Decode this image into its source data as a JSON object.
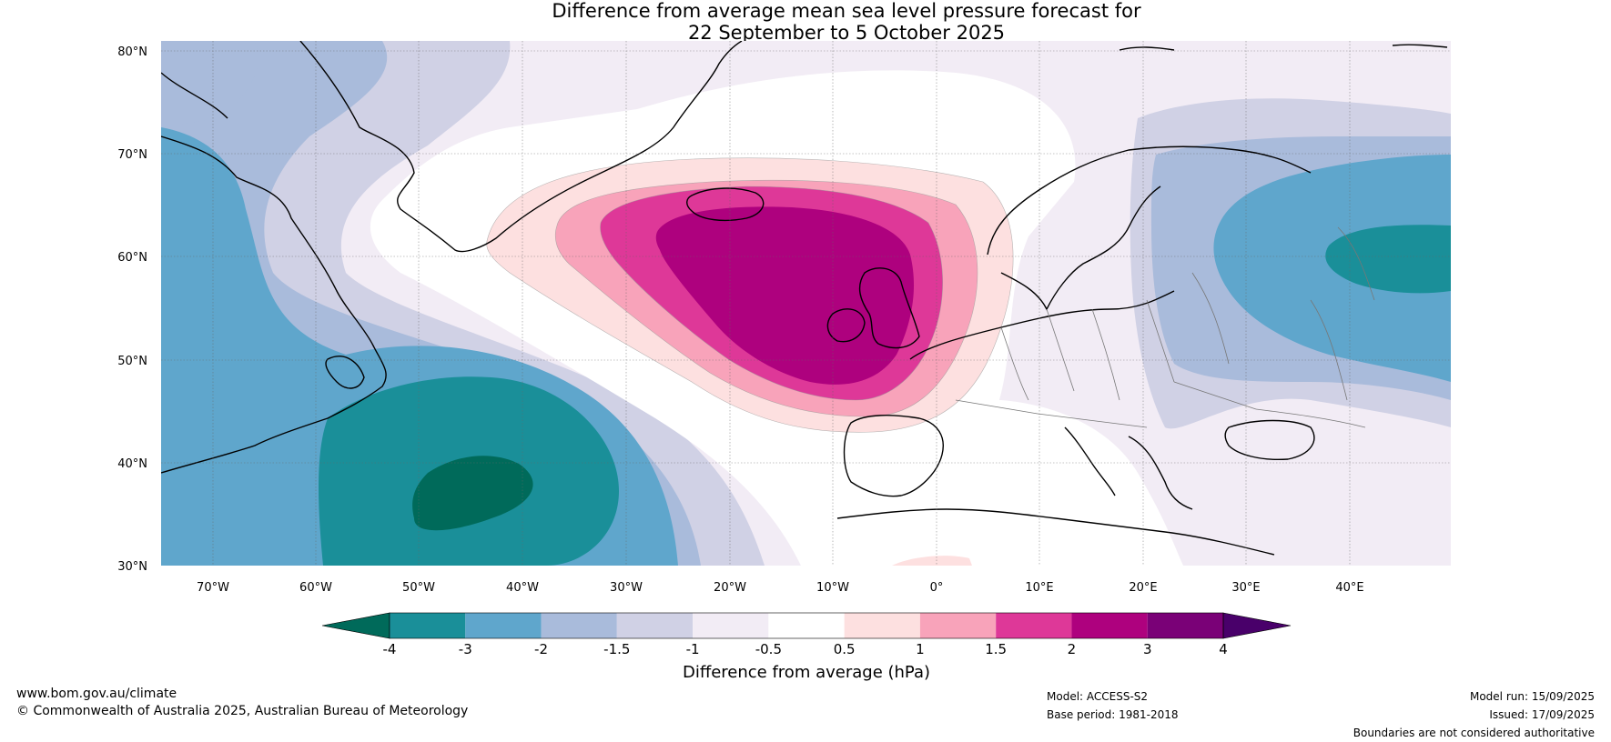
{
  "title": {
    "line1": "Difference from average mean sea level pressure forecast for",
    "line2": "22 September to 5 October 2025"
  },
  "map": {
    "lat_labels": [
      "80°N",
      "70°N",
      "60°N",
      "50°N",
      "40°N",
      "30°N"
    ],
    "lon_labels": [
      "70°W",
      "60°W",
      "50°W",
      "40°W",
      "30°W",
      "20°W",
      "10°W",
      "0°",
      "10°E",
      "20°E",
      "30°E",
      "40°E"
    ],
    "lat_range": [
      30,
      81
    ],
    "lon_range": [
      -75,
      50
    ],
    "regions": [
      {
        "name": "high-pressure-anomaly-north-atlantic",
        "center": "Iceland / British Isles",
        "max_hpa": 3
      },
      {
        "name": "low-pressure-anomaly-mid-atlantic",
        "center": "40°N 45°W",
        "min_hpa": -4
      },
      {
        "name": "low-pressure-anomaly-western-russia",
        "center": "60°N 45°E",
        "min_hpa": -3
      }
    ]
  },
  "colorbar": {
    "tick_labels": [
      "-4",
      "-3",
      "-2",
      "-1.5",
      "-1",
      "-0.5",
      "0.5",
      "1",
      "1.5",
      "2",
      "3",
      "4"
    ],
    "colors": [
      "#006a5a",
      "#1a8f99",
      "#5fa6cc",
      "#a9bbdb",
      "#d0d1e5",
      "#f2ecf5",
      "#ffffff",
      "#fde0e0",
      "#f8a3ba",
      "#de3898",
      "#ae017e",
      "#7a0177",
      "#49006a"
    ],
    "label": "Difference from average (hPa)"
  },
  "footer": {
    "url": "www.bom.gov.au/climate",
    "copyright": "© Commonwealth of Australia 2025, Australian Bureau of Meteorology",
    "model": "Model: ACCESS-S2",
    "base_period": "Base period: 1981-2018",
    "model_run": "Model run: 15/09/2025",
    "issued": "Issued: 17/09/2025",
    "disclaimer": "Boundaries are not considered authoritative"
  }
}
